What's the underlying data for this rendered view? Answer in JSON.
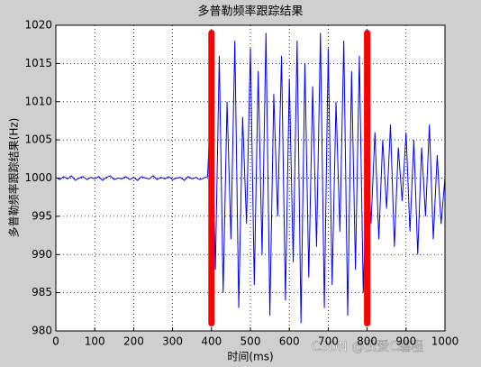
{
  "chart_data": {
    "type": "line",
    "title": "多普勒频率跟踪结果",
    "xlabel": "时间(ms)",
    "ylabel": "多普勒频率跟踪结果(Hz)",
    "watermark": "CSDN @我爱C编程",
    "xlim": [
      0,
      1000
    ],
    "xticks": [
      0,
      100,
      200,
      300,
      400,
      500,
      600,
      700,
      800,
      900,
      1000
    ],
    "ylim": [
      980,
      1020
    ],
    "yticks": [
      980,
      985,
      990,
      995,
      1000,
      1005,
      1010,
      1015,
      1020
    ],
    "grid": true,
    "series": [
      {
        "color": "#0000ff",
        "line_width": 1,
        "x": [
          0,
          10,
          20,
          30,
          40,
          50,
          60,
          70,
          80,
          90,
          100,
          110,
          120,
          130,
          140,
          150,
          160,
          170,
          180,
          190,
          200,
          210,
          220,
          230,
          240,
          250,
          260,
          270,
          280,
          290,
          300,
          310,
          320,
          330,
          340,
          350,
          360,
          370,
          380,
          390,
          400,
          410,
          420,
          430,
          440,
          450,
          460,
          470,
          480,
          490,
          500,
          510,
          520,
          530,
          540,
          550,
          560,
          570,
          580,
          590,
          600,
          610,
          620,
          630,
          640,
          650,
          660,
          670,
          680,
          690,
          700,
          710,
          720,
          730,
          740,
          750,
          760,
          770,
          780,
          790,
          800,
          810,
          820,
          830,
          840,
          850,
          860,
          870,
          880,
          890,
          900,
          910,
          920,
          930,
          940,
          950,
          960,
          970,
          980,
          990,
          1000
        ],
        "values": [
          1000.1,
          999.8,
          1000.2,
          999.9,
          1000.3,
          999.7,
          1000.0,
          1000.2,
          999.8,
          1000.1,
          999.9,
          1000.2,
          999.7,
          1000.1,
          1000.3,
          999.8,
          1000.0,
          999.9,
          1000.2,
          999.8,
          1000.1,
          999.7,
          1000.2,
          1000.0,
          999.9,
          1000.3,
          999.8,
          1000.1,
          999.9,
          1000.2,
          999.8,
          1000.0,
          1000.1,
          999.7,
          1000.2,
          999.9,
          1000.1,
          999.8,
          1000.0,
          1000.2,
          1012,
          988,
          1016,
          985,
          1010,
          992,
          1018,
          983,
          1008,
          994,
          1017,
          986,
          1014,
          990,
          1019,
          982,
          1011,
          995,
          1016,
          984,
          1013,
          989,
          1018,
          981,
          1015,
          987,
          1012,
          991,
          1019,
          983,
          1017,
          986,
          1010,
          993,
          1018,
          982,
          1014,
          988,
          1016,
          985,
          1003,
          994,
          1006,
          992,
          1005,
          996,
          1007,
          991,
          1004,
          997,
          1006,
          993,
          1005,
          990,
          1004,
          995,
          1007,
          992,
          1003,
          994,
          1000
        ]
      },
      {
        "color": "#ff0000",
        "line_width": 7,
        "x": [
          400,
          400
        ],
        "values": [
          981,
          1019
        ]
      },
      {
        "color": "#ff0000",
        "line_width": 7,
        "x": [
          800,
          800
        ],
        "values": [
          981,
          1019
        ]
      }
    ]
  }
}
